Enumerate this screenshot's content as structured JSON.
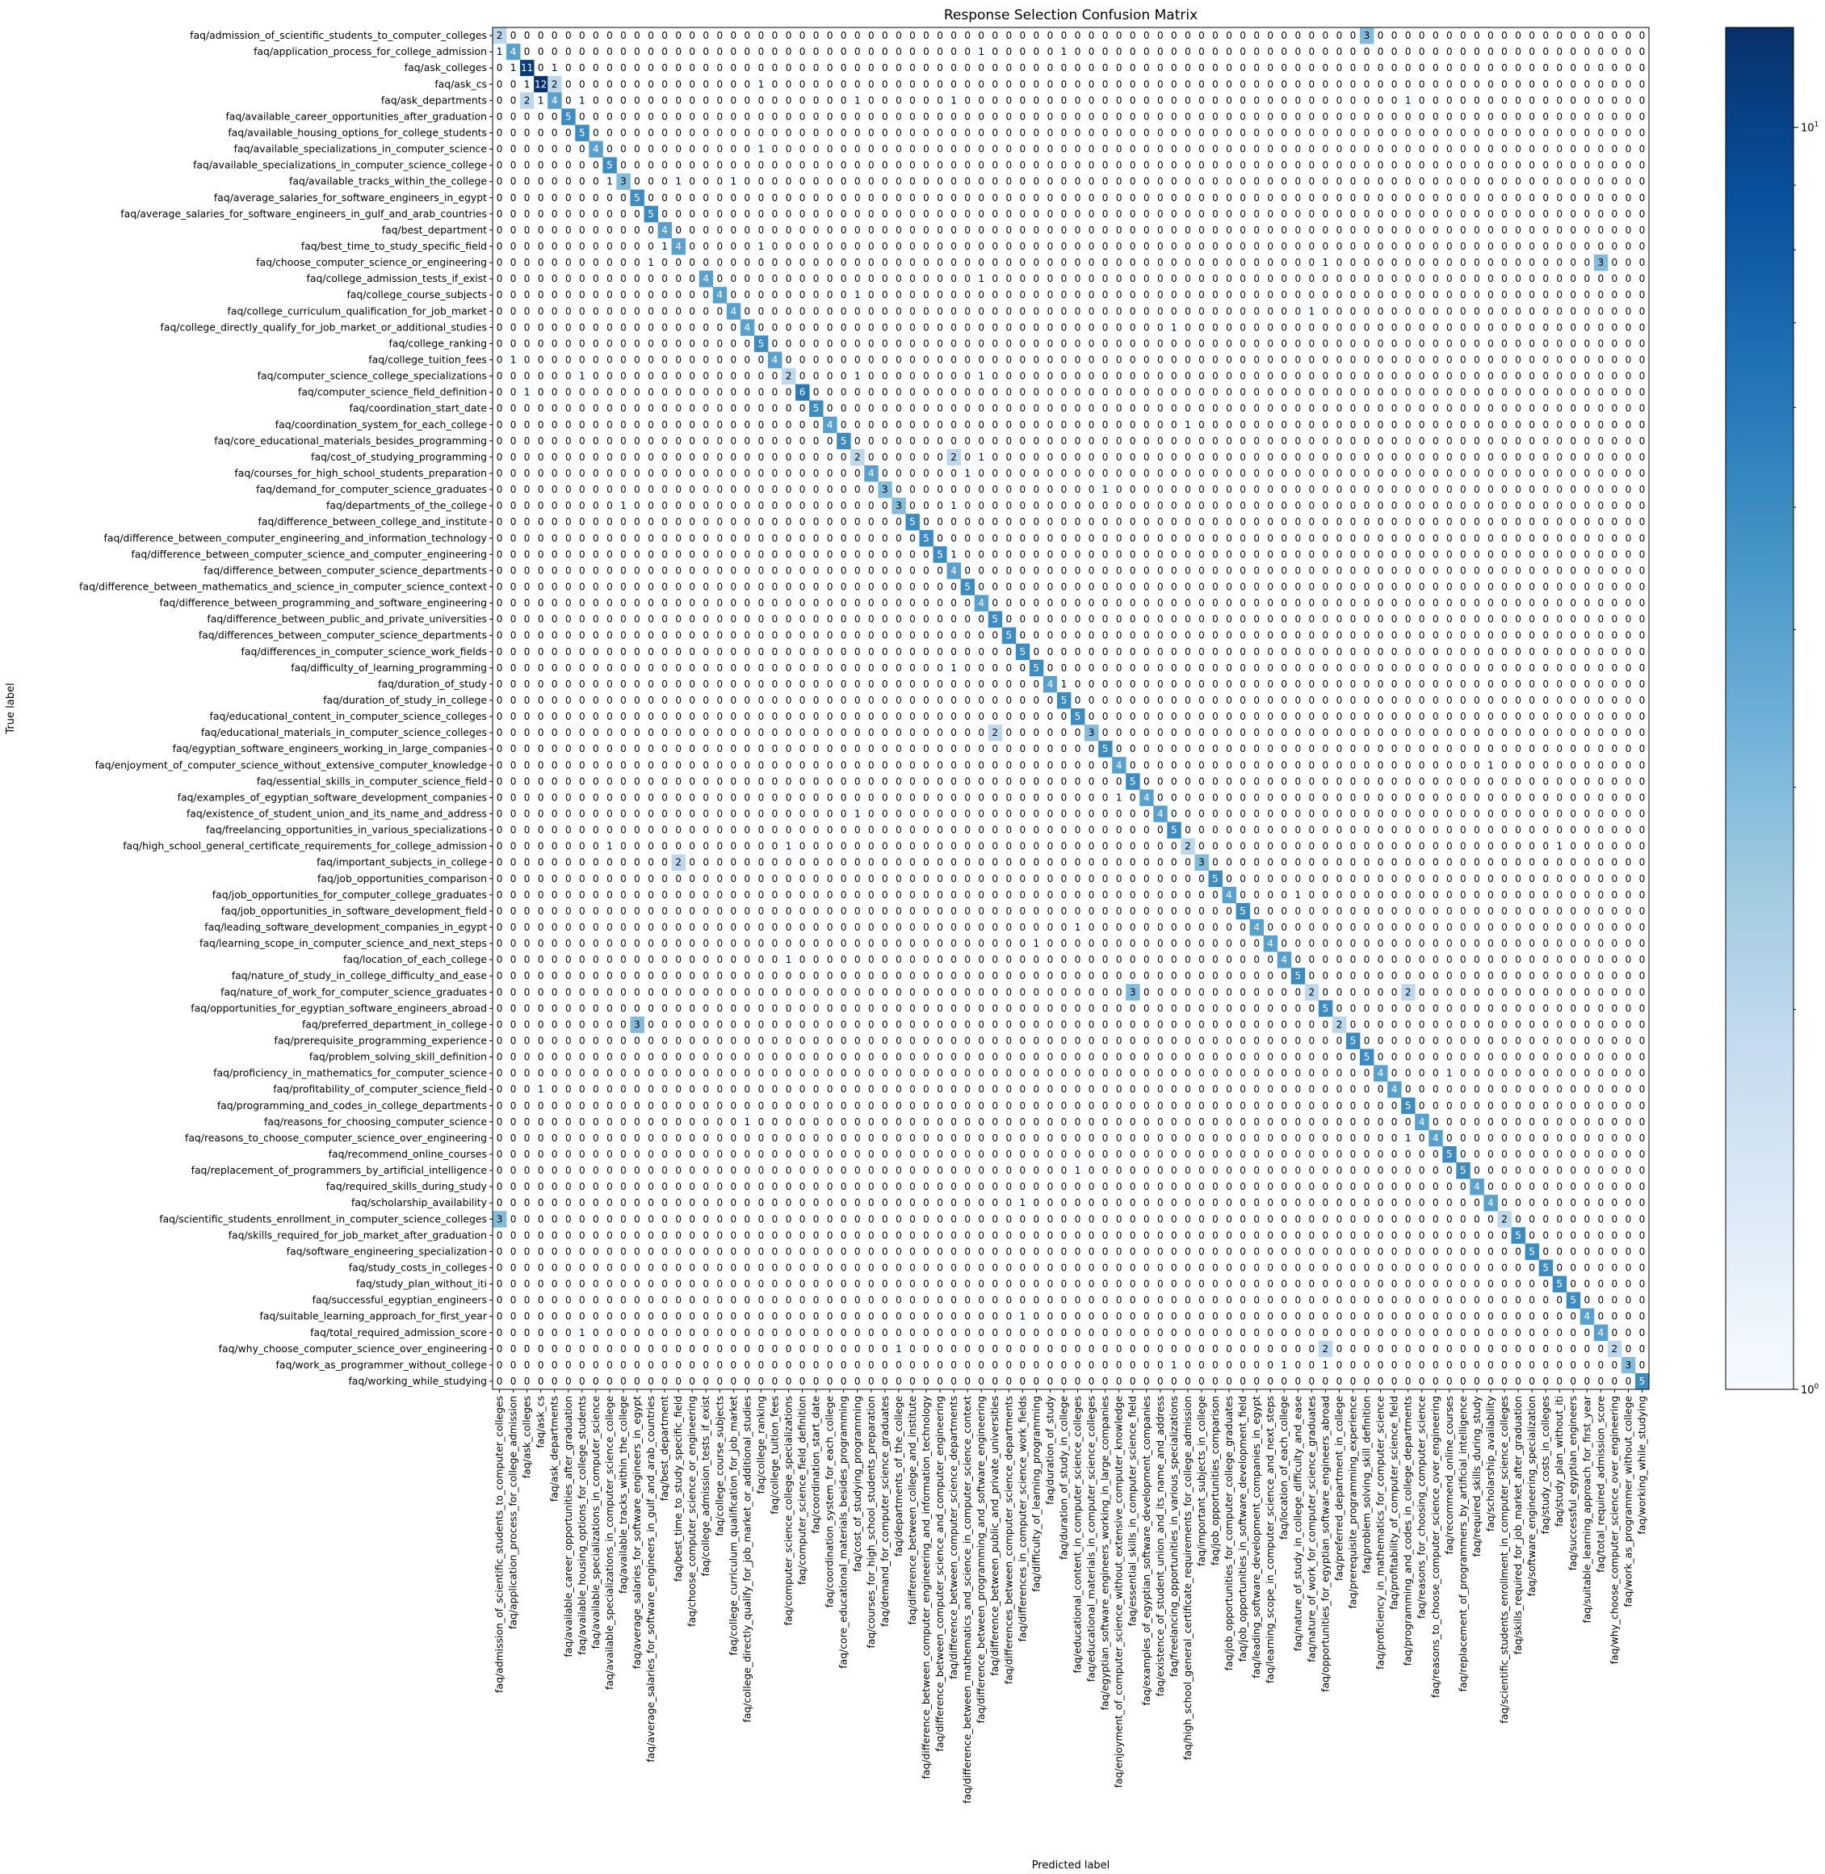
{
  "chart_data": {
    "type": "heatmap",
    "title": "Response Selection Confusion Matrix",
    "xlabel": "Predicted label",
    "ylabel": "True label",
    "colorbar": {
      "scale": "log",
      "min": 1,
      "max": 12,
      "tick_labels": [
        "10^0",
        "10^1"
      ],
      "tick_values": [
        1,
        10
      ]
    },
    "colormap": [
      "#f7fbff",
      "#deebf7",
      "#c6dbef",
      "#9ecae1",
      "#6baed6",
      "#4292c6",
      "#2171b5",
      "#08519c",
      "#08306b"
    ],
    "labels": [
      "faq/admission_of_scientific_students_to_computer_colleges",
      "faq/application_process_for_college_admission",
      "faq/ask_colleges",
      "faq/ask_cs",
      "faq/ask_departments",
      "faq/available_career_opportunities_after_graduation",
      "faq/available_housing_options_for_college_students",
      "faq/available_specializations_in_computer_science",
      "faq/available_specializations_in_computer_science_college",
      "faq/available_tracks_within_the_college",
      "faq/average_salaries_for_software_engineers_in_egypt",
      "faq/average_salaries_for_software_engineers_in_gulf_and_arab_countries",
      "faq/best_department",
      "faq/best_time_to_study_specific_field",
      "faq/choose_computer_science_or_engineering",
      "faq/college_admission_tests_if_exist",
      "faq/college_course_subjects",
      "faq/college_curriculum_qualification_for_job_market",
      "faq/college_directly_qualify_for_job_market_or_additional_studies",
      "faq/college_ranking",
      "faq/college_tuition_fees",
      "faq/computer_science_college_specializations",
      "faq/computer_science_field_definition",
      "faq/coordination_start_date",
      "faq/coordination_system_for_each_college",
      "faq/core_educational_materials_besides_programming",
      "faq/cost_of_studying_programming",
      "faq/courses_for_high_school_students_preparation",
      "faq/demand_for_computer_science_graduates",
      "faq/departments_of_the_college",
      "faq/difference_between_college_and_institute",
      "faq/difference_between_computer_engineering_and_information_technology",
      "faq/difference_between_computer_science_and_computer_engineering",
      "faq/difference_between_computer_science_departments",
      "faq/difference_between_mathematics_and_science_in_computer_science_context",
      "faq/difference_between_programming_and_software_engineering",
      "faq/difference_between_public_and_private_universities",
      "faq/differences_between_computer_science_departments",
      "faq/differences_in_computer_science_work_fields",
      "faq/difficulty_of_learning_programming",
      "faq/duration_of_study",
      "faq/duration_of_study_in_college",
      "faq/educational_content_in_computer_science_colleges",
      "faq/educational_materials_in_computer_science_colleges",
      "faq/egyptian_software_engineers_working_in_large_companies",
      "faq/enjoyment_of_computer_science_without_extensive_computer_knowledge",
      "faq/essential_skills_in_computer_science_field",
      "faq/examples_of_egyptian_software_development_companies",
      "faq/existence_of_student_union_and_its_name_and_address",
      "faq/freelancing_opportunities_in_various_specializations",
      "faq/high_school_general_certificate_requirements_for_college_admission",
      "faq/important_subjects_in_college",
      "faq/job_opportunities_comparison",
      "faq/job_opportunities_for_computer_college_graduates",
      "faq/job_opportunities_in_software_development_field",
      "faq/leading_software_development_companies_in_egypt",
      "faq/learning_scope_in_computer_science_and_next_steps",
      "faq/location_of_each_college",
      "faq/nature_of_study_in_college_difficulty_and_ease",
      "faq/nature_of_work_for_computer_science_graduates",
      "faq/opportunities_for_egyptian_software_engineers_abroad",
      "faq/preferred_department_in_college",
      "faq/prerequisite_programming_experience",
      "faq/problem_solving_skill_definition",
      "faq/proficiency_in_mathematics_for_computer_science",
      "faq/profitability_of_computer_science_field",
      "faq/programming_and_codes_in_college_departments",
      "faq/reasons_for_choosing_computer_science",
      "faq/reasons_to_choose_computer_science_over_engineering",
      "faq/recommend_online_courses",
      "faq/replacement_of_programmers_by_artificial_intelligence",
      "faq/required_skills_during_study",
      "faq/scholarship_availability",
      "faq/scientific_students_enrollment_in_computer_science_colleges",
      "faq/skills_required_for_job_market_after_graduation",
      "faq/software_engineering_specialization",
      "faq/study_costs_in_colleges",
      "faq/study_plan_without_iti",
      "faq/successful_egyptian_engineers",
      "faq/suitable_learning_approach_for_first_year",
      "faq/total_required_admission_score",
      "faq/why_choose_computer_science_over_engineering",
      "faq/work_as_programmer_without_college",
      "faq/working_while_studying"
    ],
    "diagonal": [
      2,
      4,
      11,
      12,
      4,
      5,
      5,
      4,
      5,
      3,
      5,
      5,
      4,
      4,
      0,
      4,
      4,
      4,
      4,
      5,
      4,
      2,
      6,
      5,
      4,
      5,
      2,
      4,
      3,
      3,
      5,
      5,
      5,
      4,
      5,
      4,
      5,
      5,
      5,
      5,
      4,
      5,
      5,
      3,
      5,
      4,
      5,
      4,
      4,
      5,
      2,
      3,
      5,
      4,
      5,
      4,
      4,
      4,
      5,
      2,
      5,
      2,
      5,
      5,
      4,
      4,
      5,
      4,
      4,
      5,
      5,
      4,
      4,
      2,
      5,
      5,
      5,
      5,
      5,
      4,
      4,
      2,
      3,
      5
    ],
    "off_diagonal": [
      [
        0,
        63,
        3
      ],
      [
        1,
        0,
        1
      ],
      [
        1,
        35,
        1
      ],
      [
        1,
        41,
        1
      ],
      [
        2,
        1,
        1
      ],
      [
        2,
        4,
        1
      ],
      [
        3,
        2,
        1
      ],
      [
        3,
        4,
        2
      ],
      [
        3,
        19,
        1
      ],
      [
        4,
        2,
        2
      ],
      [
        4,
        3,
        1
      ],
      [
        4,
        6,
        1
      ],
      [
        4,
        26,
        1
      ],
      [
        4,
        33,
        1
      ],
      [
        4,
        66,
        1
      ],
      [
        7,
        19,
        1
      ],
      [
        9,
        8,
        1
      ],
      [
        9,
        13,
        1
      ],
      [
        9,
        17,
        1
      ],
      [
        13,
        12,
        1
      ],
      [
        13,
        19,
        1
      ],
      [
        14,
        11,
        1
      ],
      [
        14,
        60,
        1
      ],
      [
        14,
        80,
        3
      ],
      [
        15,
        35,
        1
      ],
      [
        16,
        26,
        1
      ],
      [
        17,
        59,
        1
      ],
      [
        18,
        49,
        1
      ],
      [
        20,
        1,
        1
      ],
      [
        21,
        6,
        1
      ],
      [
        21,
        26,
        1
      ],
      [
        21,
        35,
        1
      ],
      [
        22,
        2,
        1
      ],
      [
        24,
        50,
        1
      ],
      [
        26,
        33,
        2
      ],
      [
        26,
        35,
        1
      ],
      [
        27,
        34,
        1
      ],
      [
        28,
        44,
        1
      ],
      [
        29,
        9,
        1
      ],
      [
        29,
        33,
        1
      ],
      [
        32,
        33,
        1
      ],
      [
        39,
        33,
        1
      ],
      [
        40,
        41,
        1
      ],
      [
        43,
        36,
        2
      ],
      [
        45,
        72,
        1
      ],
      [
        47,
        45,
        1
      ],
      [
        48,
        26,
        1
      ],
      [
        50,
        8,
        1
      ],
      [
        50,
        21,
        1
      ],
      [
        50,
        77,
        1
      ],
      [
        51,
        13,
        2
      ],
      [
        53,
        58,
        1
      ],
      [
        55,
        42,
        1
      ],
      [
        56,
        39,
        1
      ],
      [
        57,
        21,
        1
      ],
      [
        59,
        46,
        3
      ],
      [
        59,
        66,
        2
      ],
      [
        61,
        10,
        3
      ],
      [
        64,
        69,
        1
      ],
      [
        65,
        3,
        1
      ],
      [
        67,
        18,
        1
      ],
      [
        68,
        66,
        1
      ],
      [
        70,
        42,
        1
      ],
      [
        72,
        38,
        1
      ],
      [
        73,
        0,
        3
      ],
      [
        79,
        38,
        1
      ],
      [
        80,
        6,
        1
      ],
      [
        81,
        29,
        1
      ],
      [
        81,
        60,
        2
      ],
      [
        82,
        49,
        1
      ],
      [
        82,
        57,
        1
      ],
      [
        82,
        60,
        1
      ]
    ]
  }
}
